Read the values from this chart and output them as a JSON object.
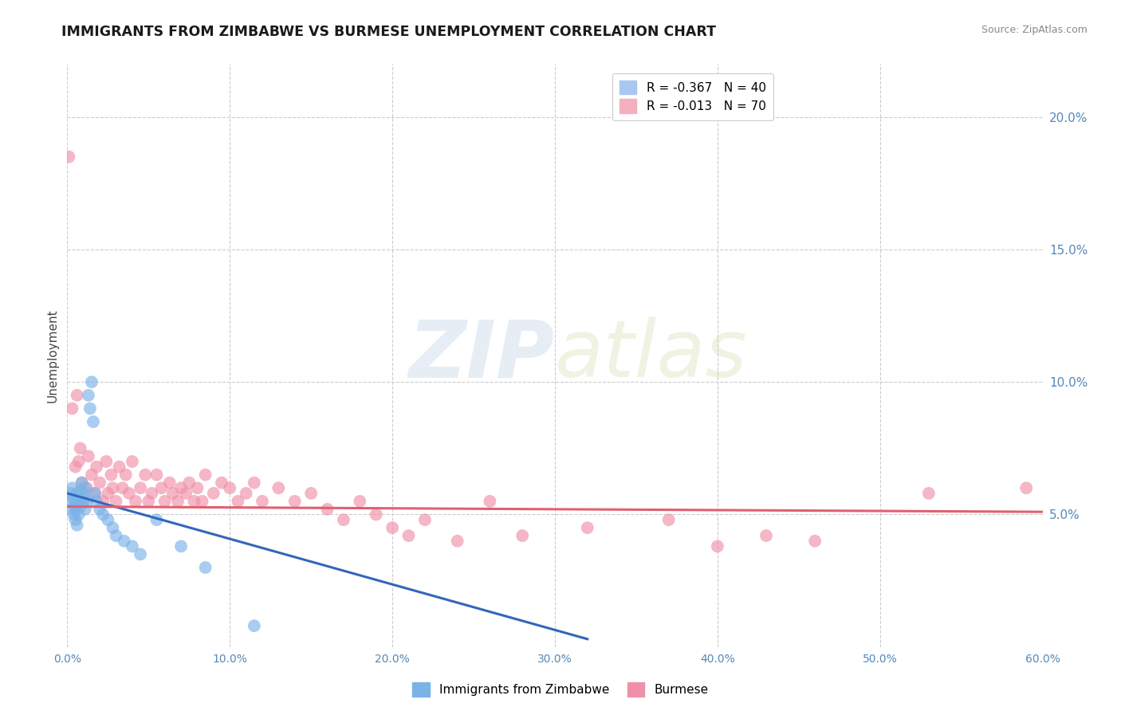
{
  "title": "IMMIGRANTS FROM ZIMBABWE VS BURMESE UNEMPLOYMENT CORRELATION CHART",
  "source": "Source: ZipAtlas.com",
  "ylabel": "Unemployment",
  "xlim": [
    0.0,
    0.6
  ],
  "ylim": [
    0.0,
    0.22
  ],
  "xticks": [
    0.0,
    0.1,
    0.2,
    0.3,
    0.4,
    0.5,
    0.6
  ],
  "xticklabels": [
    "0.0%",
    "10.0%",
    "20.0%",
    "30.0%",
    "40.0%",
    "50.0%",
    "60.0%"
  ],
  "yticks_right": [
    0.05,
    0.1,
    0.15,
    0.2
  ],
  "ytick_labels_right": [
    "5.0%",
    "10.0%",
    "15.0%",
    "20.0%"
  ],
  "grid_color": "#cccccc",
  "background_color": "#ffffff",
  "watermark_zip": "ZIP",
  "watermark_atlas": "atlas",
  "legend_entries": [
    {
      "label": "R = -0.367   N = 40",
      "color": "#a8c8f0"
    },
    {
      "label": "R = -0.013   N = 70",
      "color": "#f5b0c0"
    }
  ],
  "series_zimbabwe": {
    "color": "#7ab3e8",
    "edge_color": "none",
    "alpha": 0.65,
    "size": 130,
    "x": [
      0.001,
      0.002,
      0.003,
      0.003,
      0.004,
      0.004,
      0.005,
      0.005,
      0.005,
      0.006,
      0.006,
      0.007,
      0.007,
      0.008,
      0.008,
      0.009,
      0.009,
      0.01,
      0.01,
      0.011,
      0.011,
      0.012,
      0.013,
      0.014,
      0.015,
      0.016,
      0.017,
      0.018,
      0.02,
      0.022,
      0.025,
      0.028,
      0.03,
      0.035,
      0.04,
      0.045,
      0.055,
      0.07,
      0.085,
      0.115
    ],
    "y": [
      0.055,
      0.058,
      0.052,
      0.06,
      0.05,
      0.056,
      0.048,
      0.052,
      0.054,
      0.046,
      0.058,
      0.05,
      0.055,
      0.053,
      0.059,
      0.055,
      0.062,
      0.058,
      0.056,
      0.052,
      0.06,
      0.055,
      0.095,
      0.09,
      0.1,
      0.085,
      0.058,
      0.055,
      0.052,
      0.05,
      0.048,
      0.045,
      0.042,
      0.04,
      0.038,
      0.035,
      0.048,
      0.038,
      0.03,
      0.008
    ]
  },
  "series_burmese": {
    "color": "#f090a8",
    "edge_color": "none",
    "alpha": 0.65,
    "size": 130,
    "x": [
      0.001,
      0.003,
      0.005,
      0.006,
      0.007,
      0.008,
      0.009,
      0.01,
      0.012,
      0.013,
      0.015,
      0.017,
      0.018,
      0.02,
      0.022,
      0.024,
      0.025,
      0.027,
      0.028,
      0.03,
      0.032,
      0.034,
      0.036,
      0.038,
      0.04,
      0.042,
      0.045,
      0.048,
      0.05,
      0.052,
      0.055,
      0.058,
      0.06,
      0.063,
      0.065,
      0.068,
      0.07,
      0.073,
      0.075,
      0.078,
      0.08,
      0.083,
      0.085,
      0.09,
      0.095,
      0.1,
      0.105,
      0.11,
      0.115,
      0.12,
      0.13,
      0.14,
      0.15,
      0.16,
      0.17,
      0.18,
      0.19,
      0.2,
      0.21,
      0.22,
      0.24,
      0.26,
      0.28,
      0.32,
      0.37,
      0.4,
      0.43,
      0.46,
      0.53,
      0.59
    ],
    "y": [
      0.185,
      0.09,
      0.068,
      0.095,
      0.07,
      0.075,
      0.062,
      0.055,
      0.06,
      0.072,
      0.065,
      0.058,
      0.068,
      0.062,
      0.055,
      0.07,
      0.058,
      0.065,
      0.06,
      0.055,
      0.068,
      0.06,
      0.065,
      0.058,
      0.07,
      0.055,
      0.06,
      0.065,
      0.055,
      0.058,
      0.065,
      0.06,
      0.055,
      0.062,
      0.058,
      0.055,
      0.06,
      0.058,
      0.062,
      0.055,
      0.06,
      0.055,
      0.065,
      0.058,
      0.062,
      0.06,
      0.055,
      0.058,
      0.062,
      0.055,
      0.06,
      0.055,
      0.058,
      0.052,
      0.048,
      0.055,
      0.05,
      0.045,
      0.042,
      0.048,
      0.04,
      0.055,
      0.042,
      0.045,
      0.048,
      0.038,
      0.042,
      0.04,
      0.058,
      0.06
    ]
  },
  "trendline_zimbabwe": {
    "color": "#3366bb",
    "x_start": 0.0,
    "y_start": 0.058,
    "x_end": 0.32,
    "y_end": 0.003
  },
  "trendline_burmese": {
    "color": "#e06070",
    "x_start": 0.0,
    "y_start": 0.053,
    "x_end": 0.6,
    "y_end": 0.051
  }
}
